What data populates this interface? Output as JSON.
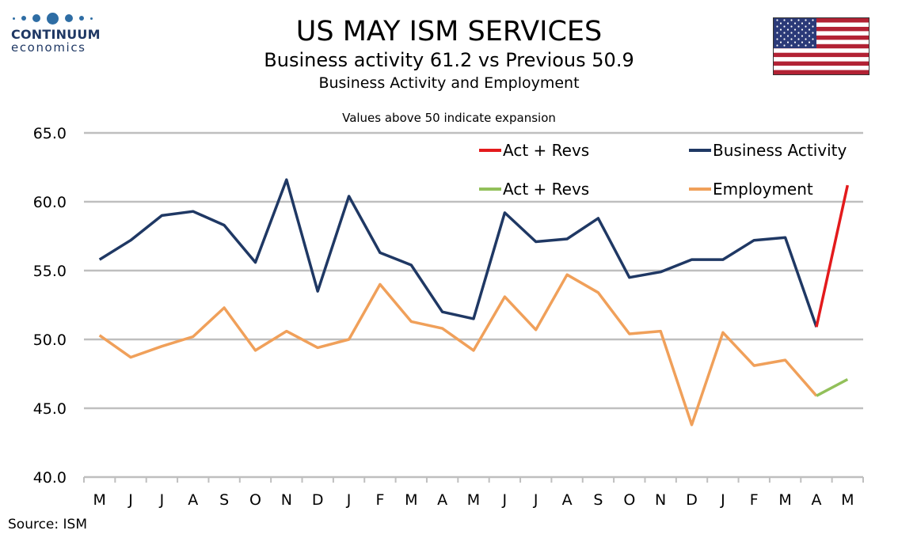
{
  "logo": {
    "brand": "CONTINUUM",
    "sub": "economics"
  },
  "title": "US MAY ISM SERVICES",
  "subtitle": "Business activity 61.2 vs Previous 50.9",
  "subtitle2": "Business Activity and Employment",
  "note": "Values above 50 indicate expansion",
  "source": "Source: ISM",
  "colors": {
    "business_activity": "#1f3864",
    "employment": "#f0a05a",
    "act_revs_business": "#e31a1c",
    "act_revs_employment": "#92c05a",
    "grid": "#bfbfbf"
  },
  "chart_data": {
    "type": "line",
    "title": "US MAY ISM SERVICES",
    "ylim": [
      40,
      65
    ],
    "yticks": [
      "40.0",
      "45.0",
      "50.0",
      "55.0",
      "60.0",
      "65.0"
    ],
    "ytick_values": [
      40,
      45,
      50,
      55,
      60,
      65
    ],
    "grid": true,
    "legend_position": "top-right",
    "categories": [
      "M",
      "J",
      "J",
      "A",
      "S",
      "O",
      "N",
      "D",
      "J",
      "F",
      "M",
      "A",
      "M",
      "J",
      "J",
      "A",
      "S",
      "O",
      "N",
      "D",
      "J",
      "F",
      "M",
      "A",
      "M"
    ],
    "series": [
      {
        "name": "Business Activity",
        "color_key": "business_activity",
        "values": [
          55.8,
          57.2,
          59.0,
          59.3,
          58.3,
          55.6,
          61.6,
          53.5,
          60.4,
          56.3,
          55.4,
          52.0,
          51.5,
          59.2,
          57.1,
          57.3,
          58.8,
          54.5,
          54.9,
          55.8,
          55.8,
          57.2,
          57.4,
          50.9,
          null
        ]
      },
      {
        "name": "Employment",
        "color_key": "employment",
        "values": [
          50.3,
          48.7,
          49.5,
          50.2,
          52.3,
          49.2,
          50.6,
          49.4,
          50.0,
          54.0,
          51.3,
          50.8,
          49.2,
          53.1,
          50.7,
          54.7,
          53.4,
          50.4,
          50.6,
          43.8,
          50.5,
          48.1,
          48.5,
          45.9,
          null
        ]
      },
      {
        "name": "Act + Revs",
        "color_key": "act_revs_business",
        "values": [
          null,
          null,
          null,
          null,
          null,
          null,
          null,
          null,
          null,
          null,
          null,
          null,
          null,
          null,
          null,
          null,
          null,
          null,
          null,
          null,
          null,
          null,
          null,
          50.9,
          61.2
        ]
      },
      {
        "name": "Act + Revs",
        "color_key": "act_revs_employment",
        "values": [
          null,
          null,
          null,
          null,
          null,
          null,
          null,
          null,
          null,
          null,
          null,
          null,
          null,
          null,
          null,
          null,
          null,
          null,
          null,
          null,
          null,
          null,
          null,
          45.9,
          47.1
        ]
      }
    ],
    "legend": [
      {
        "label": "Act + Revs",
        "color_key": "act_revs_business"
      },
      {
        "label": "Business Activity",
        "color_key": "business_activity"
      },
      {
        "label": "Act + Revs",
        "color_key": "act_revs_employment"
      },
      {
        "label": "Employment",
        "color_key": "employment"
      }
    ]
  }
}
